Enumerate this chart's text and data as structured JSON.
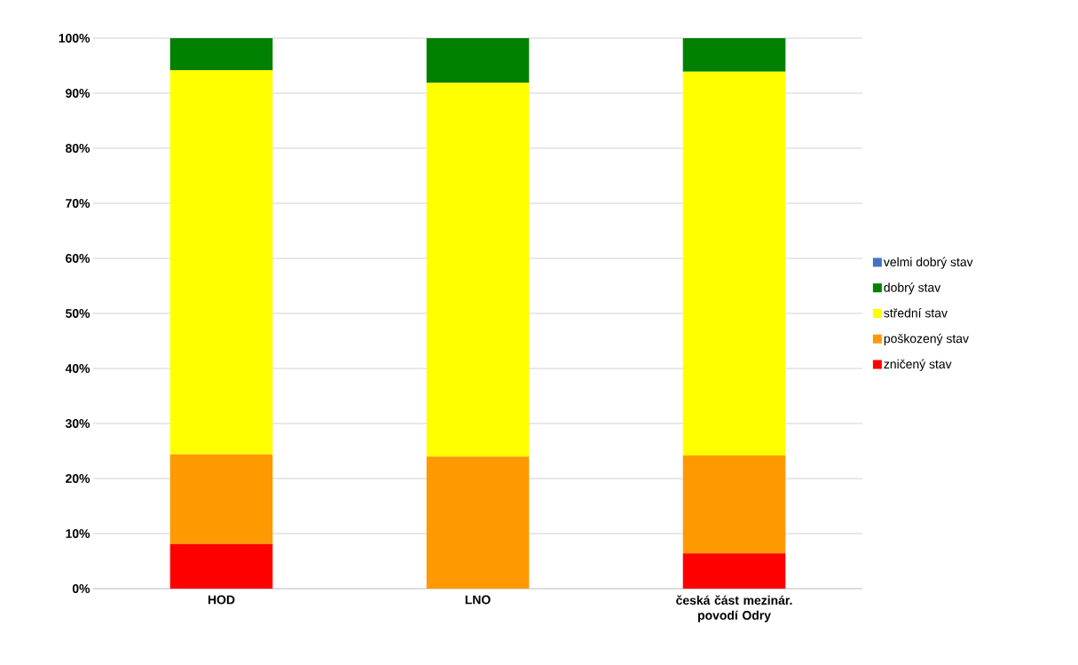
{
  "chart_data": {
    "type": "bar",
    "stacked": true,
    "categories": [
      "HOD",
      "LNO",
      "česká část mezinár. povodí Odry"
    ],
    "series": [
      {
        "name": "zničený stav",
        "color": "#ff0000",
        "values": [
          8.1,
          0,
          6.4
        ]
      },
      {
        "name": "poškozený stav",
        "color": "#ff9900",
        "values": [
          16.3,
          24.0,
          17.8
        ]
      },
      {
        "name": "střední stav",
        "color": "#ffff00",
        "values": [
          69.8,
          67.9,
          69.7
        ]
      },
      {
        "name": "dobrý stav",
        "color": "#008000",
        "values": [
          5.8,
          8.1,
          6.1
        ]
      },
      {
        "name": "velmi dobrý stav",
        "color": "#4472c4",
        "values": [
          0,
          0,
          0
        ]
      }
    ],
    "ylim": [
      0,
      100
    ],
    "yticks": [
      {
        "value": 0,
        "label": "0%"
      },
      {
        "value": 10,
        "label": "10%"
      },
      {
        "value": 20,
        "label": "20%"
      },
      {
        "value": 30,
        "label": "30%"
      },
      {
        "value": 40,
        "label": "40%"
      },
      {
        "value": 50,
        "label": "50%"
      },
      {
        "value": 60,
        "label": "60%"
      },
      {
        "value": 70,
        "label": "70%"
      },
      {
        "value": 80,
        "label": "80%"
      },
      {
        "value": 90,
        "label": "90%"
      },
      {
        "value": 100,
        "label": "100%"
      }
    ],
    "grid": "y",
    "legend": "right"
  }
}
